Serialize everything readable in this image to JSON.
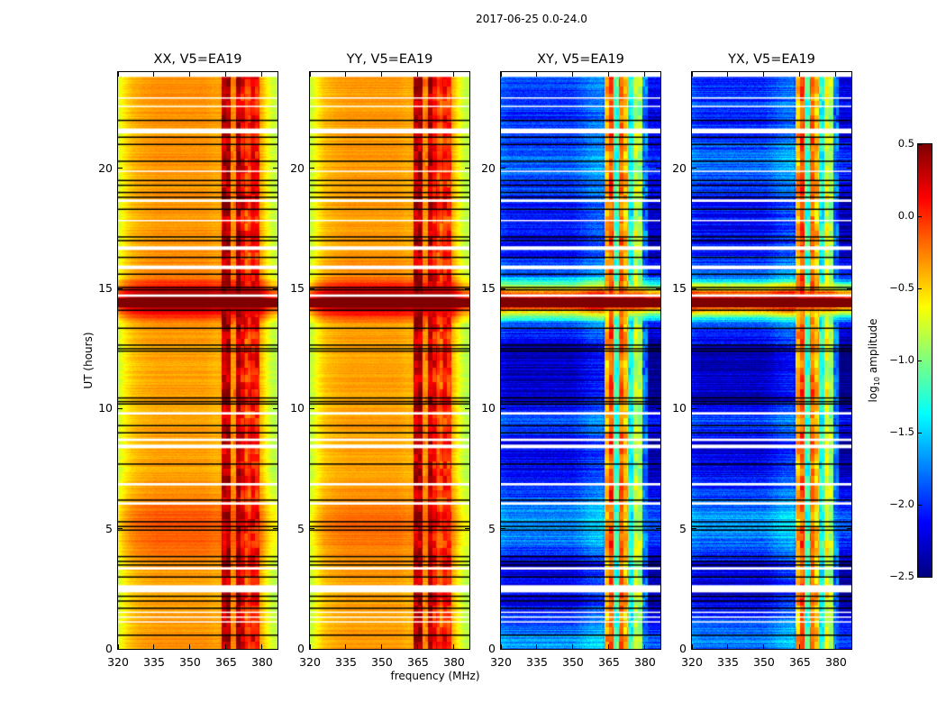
{
  "chart_data": {
    "type": "heatmap",
    "title": "2017-06-25 0.0-24.0",
    "xlabel": "frequency (MHz)",
    "ylabel": "UT (hours)",
    "xlim": [
      320,
      386.4
    ],
    "ylim": [
      0,
      24
    ],
    "xticks": [
      "320",
      "335",
      "350",
      "365",
      "380"
    ],
    "xtick_values": [
      320,
      335,
      350,
      365,
      380
    ],
    "yticks": [
      "0",
      "5",
      "10",
      "15",
      "20"
    ],
    "ytick_values": [
      0,
      5,
      10,
      15,
      20
    ],
    "colormap": "jet",
    "colorbar": {
      "label_main": "log",
      "label_sub": "10",
      "label_rest": " amplitude",
      "vmin": -2.5,
      "vmax": 0.5,
      "ticks": [
        "0.5",
        "0.0",
        "−0.5",
        "−1.0",
        "−1.5",
        "−2.0",
        "−2.5"
      ],
      "tick_values": [
        0.5,
        0.0,
        -0.5,
        -1.0,
        -1.5,
        -2.0,
        -2.5
      ]
    },
    "freq_grid_mhz": [
      320,
      322,
      324,
      326,
      328,
      330,
      332,
      334,
      336,
      338,
      340,
      342,
      344,
      346,
      348,
      350,
      352,
      354,
      356,
      358,
      360,
      362,
      364,
      366,
      368,
      370,
      372,
      374,
      376,
      378,
      380,
      382,
      384,
      386
    ],
    "panels": [
      {
        "title": "XX, V5=EA19",
        "kind": "parallel",
        "freq_offset": [
          -0.45,
          -0.3,
          -0.2,
          -0.12,
          -0.08,
          -0.05,
          -0.03,
          -0.02,
          0,
          0,
          0,
          0,
          0,
          0,
          0,
          0,
          0,
          0,
          0,
          -0.02,
          -0.05,
          -0.05,
          0,
          0,
          0,
          0,
          0,
          0,
          0,
          0,
          -0.1,
          -0.3,
          -0.45,
          -0.5
        ],
        "band_level": [
          -9,
          -9,
          -9,
          -9,
          -9,
          -9,
          -9,
          -9,
          -9,
          -9,
          -9,
          -9,
          -9,
          -9,
          -9,
          -9,
          -9,
          -9,
          -9,
          -9,
          -9,
          -9,
          0.3,
          0.35,
          -0.35,
          0.35,
          0.15,
          -0.05,
          0.1,
          0.05,
          -9,
          -9,
          -9,
          -9
        ],
        "hour_level": [
          -0.3,
          -0.35,
          -0.35,
          -0.3,
          -0.15,
          -0.12,
          -0.3,
          -0.35,
          -0.35,
          -0.35,
          -0.33,
          -0.35,
          -0.35,
          -0.32,
          0.6,
          -0.25,
          -0.3,
          -0.32,
          -0.32,
          -0.32,
          -0.3,
          -0.32,
          -0.3,
          -0.3
        ],
        "noise": 0.08
      },
      {
        "title": "YY, V5=EA19",
        "kind": "parallel",
        "freq_offset": [
          -0.5,
          -0.35,
          -0.22,
          -0.12,
          -0.08,
          -0.05,
          -0.03,
          -0.02,
          0,
          0,
          0,
          0,
          0,
          0,
          0,
          0,
          0,
          0,
          0,
          -0.02,
          -0.05,
          -0.05,
          0,
          0,
          0,
          0,
          0,
          0,
          0,
          0,
          -0.1,
          -0.3,
          -0.45,
          -0.5
        ],
        "band_level": [
          -9,
          -9,
          -9,
          -9,
          -9,
          -9,
          -9,
          -9,
          -9,
          -9,
          -9,
          -9,
          -9,
          -9,
          -9,
          -9,
          -9,
          -9,
          -9,
          -9,
          -9,
          -9,
          0.3,
          0.35,
          -0.35,
          0.3,
          0.1,
          -0.1,
          0.05,
          0.0,
          -9,
          -9,
          -9,
          -9
        ],
        "hour_level": [
          -0.32,
          -0.35,
          -0.35,
          -0.32,
          -0.2,
          -0.18,
          -0.3,
          -0.35,
          -0.35,
          -0.35,
          -0.35,
          -0.35,
          -0.35,
          -0.33,
          0.6,
          -0.27,
          -0.32,
          -0.33,
          -0.33,
          -0.33,
          -0.32,
          -0.33,
          -0.32,
          -0.32
        ],
        "noise": 0.08
      },
      {
        "title": "XY, V5=EA19",
        "kind": "cross",
        "freq_offset": [
          0.1,
          0.05,
          0,
          0,
          0,
          0,
          0,
          0,
          0,
          0,
          0,
          0,
          0,
          0,
          0,
          0,
          0.05,
          0.1,
          0.15,
          0.2,
          0.2,
          0.25,
          0,
          0,
          0,
          0,
          0,
          0,
          0,
          0,
          -0.1,
          -0.2,
          -0.2,
          -0.2
        ],
        "band_level": [
          -9,
          -9,
          -9,
          -9,
          -9,
          -9,
          -9,
          -9,
          -9,
          -9,
          -9,
          -9,
          -9,
          -9,
          -9,
          -9,
          -9,
          -9,
          -9,
          -9,
          -9,
          -9,
          -0.4,
          -0.1,
          -1.2,
          -0.2,
          -0.45,
          -1.3,
          -0.8,
          -0.9,
          -1.8,
          -9,
          -9,
          -9
        ],
        "hour_level": [
          -1.7,
          -2.1,
          -2.2,
          -2.2,
          -1.8,
          -1.65,
          -2.0,
          -2.2,
          -2.2,
          -1.9,
          -2.3,
          -2.3,
          -2.3,
          -1.9,
          0.6,
          -1.8,
          -2.1,
          -2.1,
          -2.1,
          -1.9,
          -1.8,
          -2.0,
          -2.0,
          -2.0
        ],
        "noise": 0.25
      },
      {
        "title": "YX, V5=EA19",
        "kind": "cross",
        "freq_offset": [
          0.1,
          0.05,
          0,
          0,
          0,
          0,
          0,
          0,
          0,
          0,
          0,
          0,
          0,
          0,
          0,
          0,
          0.05,
          0.1,
          0.15,
          0.2,
          0.2,
          0.25,
          0,
          0,
          0,
          0,
          0,
          0,
          0,
          0,
          -0.1,
          -0.2,
          -0.2,
          -0.2
        ],
        "band_level": [
          -9,
          -9,
          -9,
          -9,
          -9,
          -9,
          -9,
          -9,
          -9,
          -9,
          -9,
          -9,
          -9,
          -9,
          -9,
          -9,
          -9,
          -9,
          -9,
          -9,
          -9,
          -9,
          -0.4,
          -0.1,
          -1.2,
          -0.2,
          -0.45,
          -1.3,
          -0.7,
          -0.9,
          -1.8,
          -9,
          -9,
          -9
        ],
        "hour_level": [
          -1.75,
          -2.1,
          -2.2,
          -2.2,
          -1.8,
          -1.65,
          -2.0,
          -2.2,
          -2.2,
          -1.9,
          -2.3,
          -2.3,
          -2.3,
          -1.9,
          0.6,
          -1.8,
          -2.1,
          -2.1,
          -2.1,
          -1.9,
          -1.8,
          -2.0,
          -2.0,
          -2.0
        ],
        "noise": 0.25
      }
    ],
    "saturated_hours": [
      14.2,
      14.6
    ],
    "flagged_white_hours": [
      [
        1.1,
        1.15
      ],
      [
        1.3,
        1.35
      ],
      [
        1.5,
        1.55
      ],
      [
        2.35,
        2.65
      ],
      [
        3.3,
        3.4
      ],
      [
        6.0,
        6.1
      ],
      [
        6.8,
        6.9
      ],
      [
        8.35,
        8.5
      ],
      [
        8.65,
        8.75
      ],
      [
        9.75,
        9.85
      ],
      [
        14.65,
        14.75
      ],
      [
        15.8,
        15.95
      ],
      [
        16.6,
        16.75
      ],
      [
        17.8,
        17.85
      ],
      [
        18.6,
        18.7
      ],
      [
        19.85,
        19.9
      ],
      [
        21.45,
        21.65
      ],
      [
        22.55,
        22.6
      ],
      [
        22.9,
        22.95
      ],
      [
        23.8,
        24.0
      ]
    ],
    "flagged_black_hours": [
      0.58,
      1.7,
      2.0,
      2.2,
      3.0,
      3.5,
      3.65,
      3.85,
      4.95,
      5.1,
      5.3,
      6.2,
      7.7,
      9.0,
      9.3,
      10.2,
      10.3,
      10.45,
      12.4,
      12.5,
      12.65,
      13.35,
      14.1,
      14.95,
      15.05,
      15.6,
      16.3,
      17.0,
      17.15,
      18.3,
      18.8,
      19.0,
      19.3,
      19.5,
      20.3,
      21.0,
      21.3,
      22.0
    ]
  }
}
